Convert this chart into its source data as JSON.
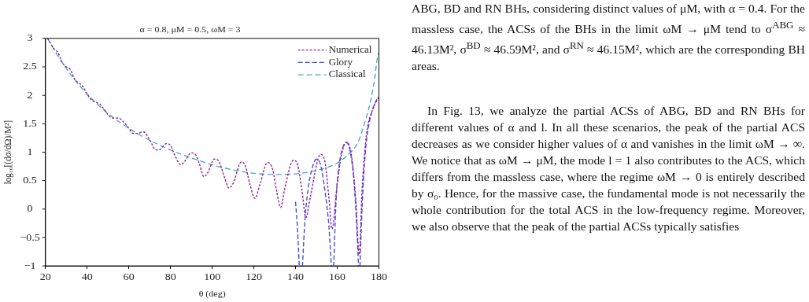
{
  "chart_data": {
    "type": "line",
    "title": "α = 0.8, μM = 0.5, ωM = 3",
    "xlabel": "θ (deg)",
    "ylabel": "log₁₀[(dσ/dΩ)/M²]",
    "xlim": [
      20,
      180
    ],
    "xticks": [
      20,
      40,
      60,
      80,
      100,
      120,
      140,
      160,
      180
    ],
    "ylim": [
      -1,
      3
    ],
    "yticks": [
      {
        "value": -1,
        "label": "−1"
      },
      {
        "value": -0.5,
        "label": "−0.5"
      },
      0,
      0.5,
      1,
      1.5,
      2,
      2.5,
      3
    ],
    "grid": false,
    "legend": "top right",
    "marker": "none",
    "series": [
      {
        "name": "Numerical",
        "color": "#8e1f9c",
        "line_style": "dashed",
        "x": [
          21,
          24,
          26,
          28,
          30,
          32,
          34,
          36,
          38,
          40,
          42,
          44,
          46,
          48,
          50,
          52,
          55,
          57,
          60,
          62,
          64,
          67,
          70,
          73,
          75,
          78,
          80,
          82,
          85,
          87,
          90,
          92,
          94,
          96,
          98,
          101,
          103,
          106,
          108,
          110,
          114,
          116,
          118,
          120.5,
          123,
          126.5,
          129,
          131,
          132.8,
          135,
          139,
          141,
          143,
          145,
          147,
          152,
          154,
          156,
          157.5,
          160,
          162,
          164.5,
          167,
          169,
          170.5,
          172,
          174,
          177,
          180
        ],
        "values": [
          3.0,
          2.82,
          2.75,
          2.58,
          2.5,
          2.45,
          2.28,
          2.22,
          2.15,
          2.02,
          1.92,
          1.88,
          1.85,
          1.76,
          1.66,
          1.6,
          1.6,
          1.55,
          1.42,
          1.33,
          1.33,
          1.36,
          1.22,
          1.04,
          1.05,
          1.15,
          1.12,
          0.95,
          0.78,
          0.85,
          0.99,
          0.96,
          0.78,
          0.57,
          0.65,
          0.88,
          0.85,
          0.55,
          0.37,
          0.45,
          0.83,
          0.75,
          0.45,
          0.19,
          0.45,
          0.82,
          0.7,
          0.3,
          0.03,
          0.4,
          0.86,
          0.78,
          0.35,
          -0.15,
          0.2,
          0.96,
          0.85,
          0.2,
          -0.35,
          0.45,
          0.95,
          1.18,
          0.9,
          0.1,
          -0.8,
          0.4,
          1.3,
          1.75,
          1.97
        ]
      },
      {
        "name": "Glory",
        "color": "#3c4fe0",
        "line_style": "dashed",
        "x": [
          140,
          141,
          141.8,
          142.3,
          143.3,
          144.5,
          146,
          148,
          150,
          152,
          154,
          156,
          157.2,
          157.8,
          158.3,
          159.5,
          161,
          163,
          164.5,
          166,
          168,
          169.5,
          170.2,
          170.5,
          170.9,
          172,
          173.5,
          175,
          177,
          179,
          180
        ],
        "values": [
          0.13,
          -0.4,
          -1,
          null,
          -1,
          -0.2,
          0.35,
          0.72,
          0.88,
          0.78,
          0.35,
          -0.3,
          -1,
          null,
          -1,
          0.2,
          0.8,
          1.12,
          1.17,
          1.05,
          0.5,
          -0.4,
          -1,
          null,
          -1,
          0.1,
          1.0,
          1.45,
          1.75,
          1.93,
          1.97
        ]
      },
      {
        "name": "Classical",
        "color": "#4aa6c8",
        "line_style": "dashed",
        "x": [
          21,
          25,
          30,
          35,
          40,
          45,
          50,
          60,
          70,
          80,
          90,
          100,
          110,
          120,
          130,
          140,
          150,
          155,
          160,
          165,
          170,
          173,
          176,
          178,
          179,
          180
        ],
        "values": [
          3.0,
          2.75,
          2.47,
          2.23,
          2.02,
          1.84,
          1.68,
          1.42,
          1.21,
          1.04,
          0.9,
          0.78,
          0.69,
          0.63,
          0.61,
          0.62,
          0.68,
          0.73,
          0.81,
          0.95,
          1.18,
          1.5,
          1.9,
          2.3,
          2.6,
          2.75
        ]
      }
    ],
    "annotations": [
      "ABG, BD and RN BHs, considering distinct values of μM, with α = 0.4. For the massless case, the ACSs of the BHs in the limit ωM → μM tend to σ$^{ABG}$ ≈ 46.13M², σ$^{BD}$ ≈ 46.59M², and σ$^{RN}$ ≈ 46.15M², which are the corresponding BH areas.",
      "In Fig. 13, we analyze the partial ACSs of ABG, BD and RN BHs for different values of α and l. In all these scenarios, the peak of the partial ACS decreases as we consider higher values of α and vanishes in the limit ωM → ∞. We notice that as ωM → μM, the mode l = 1 also contributes to the ACS, which differs from the massless case, where the regime ωM → 0 is entirely described by σ₀. Hence, for the massive case, the fundamental mode is not necessarily the whole contribution for the total ACS in the low-frequency regime. Moreover, we also observe that the peak of the partial ACSs typically satisfies"
    ]
  }
}
